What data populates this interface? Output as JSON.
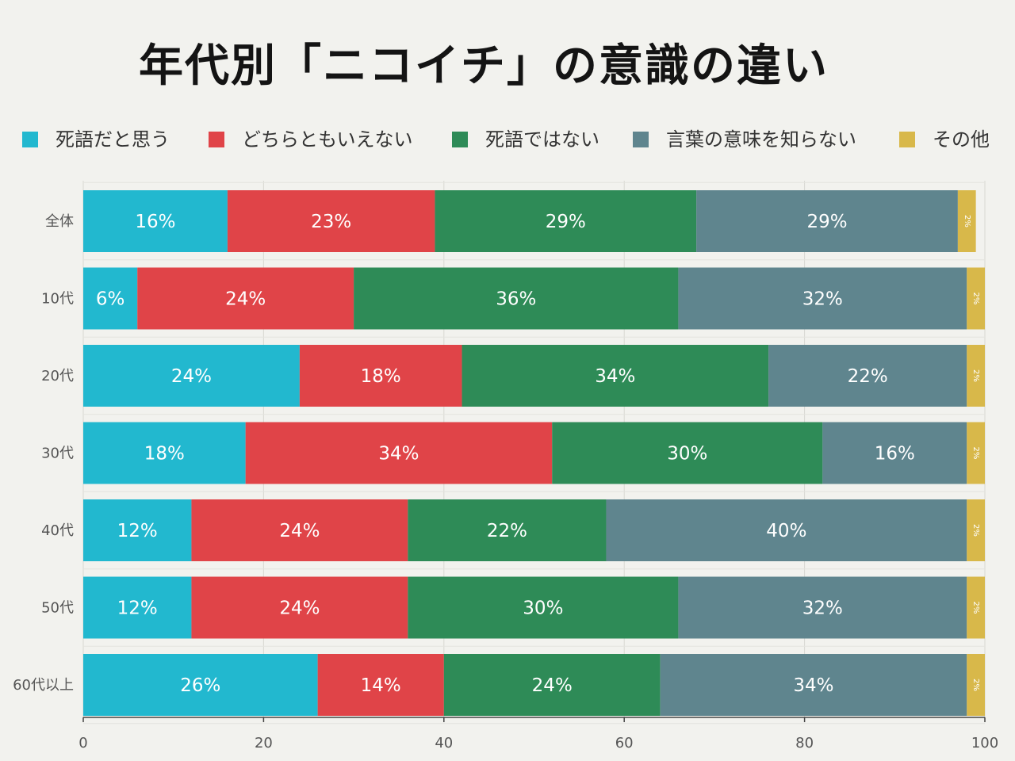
{
  "chart_data": {
    "type": "bar",
    "orientation": "horizontal",
    "stacked": true,
    "title": "年代別「ニコイチ」の意識の違い",
    "xlabel": "",
    "ylabel": "",
    "xlim": [
      0,
      100
    ],
    "xticks": [
      "0",
      "20",
      "40",
      "60",
      "80",
      "100"
    ],
    "grid": true,
    "legend_position": "top",
    "categories": [
      "全体",
      "10代",
      "20代",
      "30代",
      "40代",
      "50代",
      "60代以上"
    ],
    "series": [
      {
        "name": "死語だと思う",
        "color": "#22b8cf",
        "values": [
          16,
          6,
          24,
          18,
          12,
          12,
          26
        ],
        "labels": [
          "16%",
          "6%",
          "24%",
          "18%",
          "12%",
          "12%",
          "26%"
        ]
      },
      {
        "name": "どちらともいえない",
        "color": "#e04448",
        "values": [
          23,
          24,
          18,
          34,
          24,
          24,
          14
        ],
        "labels": [
          "23%",
          "24%",
          "18%",
          "34%",
          "24%",
          "24%",
          "14%"
        ]
      },
      {
        "name": "死語ではない",
        "color": "#2e8b57",
        "values": [
          29,
          36,
          34,
          30,
          22,
          30,
          24
        ],
        "labels": [
          "29%",
          "36%",
          "34%",
          "30%",
          "22%",
          "30%",
          "24%"
        ]
      },
      {
        "name": "言葉の意味を知らない",
        "color": "#5f858e",
        "values": [
          29,
          32,
          22,
          16,
          40,
          32,
          34
        ],
        "labels": [
          "29%",
          "32%",
          "22%",
          "16%",
          "40%",
          "32%",
          "34%"
        ]
      },
      {
        "name": "その他",
        "color": "#d8b84a",
        "values": [
          2,
          2,
          2,
          2,
          2,
          2,
          2
        ],
        "labels": [
          "2%",
          "2%",
          "2%",
          "2%",
          "2%",
          "2%",
          "2%"
        ]
      }
    ]
  }
}
